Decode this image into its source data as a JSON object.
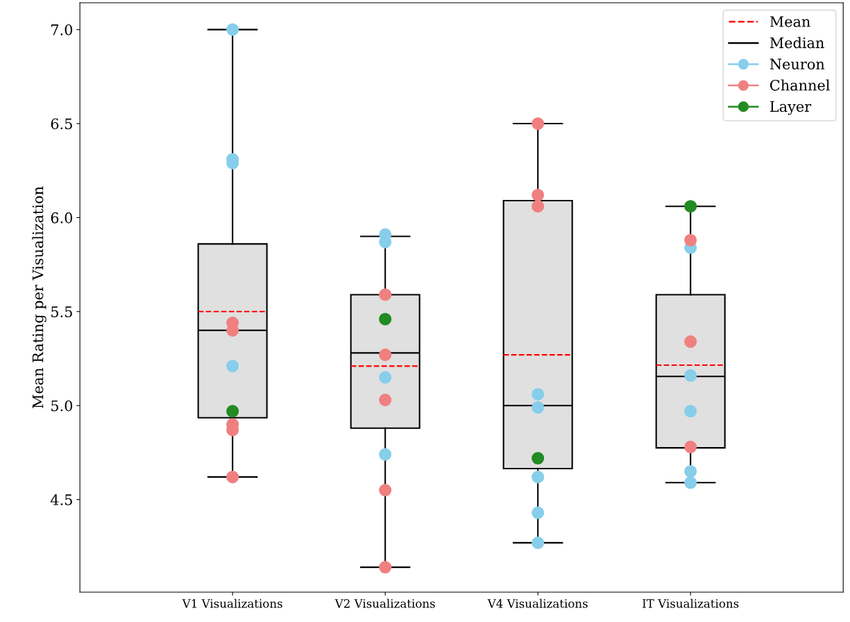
{
  "chart_data": {
    "type": "box",
    "categories": [
      "V1 Visualizations",
      "V2 Visualizations",
      "V4 Visualizations",
      "IT Visualizations"
    ],
    "ylabel": "Mean Rating per Visualization",
    "ylim": [
      4.0075,
      7.1425
    ],
    "yticks": [
      {
        "value": 4.5,
        "label": "4.5"
      },
      {
        "value": 5.0,
        "label": "5.0"
      },
      {
        "value": 5.5,
        "label": "5.5"
      },
      {
        "value": 6.0,
        "label": "6.0"
      },
      {
        "value": 6.5,
        "label": "6.5"
      },
      {
        "value": 7.0,
        "label": "7.0"
      }
    ],
    "annotations": [
      "Mean",
      "Median"
    ],
    "legend": "top right",
    "grid": false,
    "marker": "circle",
    "series": [
      {
        "type": "box",
        "color": "#e0e0e0",
        "boxes": [
          {
            "low": 4.62,
            "q1": 4.935,
            "median": 5.4,
            "q3": 5.86,
            "high": 7.0,
            "mean": 5.5
          },
          {
            "low": 4.14,
            "q1": 4.88,
            "median": 5.28,
            "q3": 5.59,
            "high": 5.9,
            "mean": 5.21
          },
          {
            "low": 4.27,
            "q1": 4.665,
            "median": 5.0,
            "q3": 6.09,
            "high": 6.5,
            "mean": 5.27
          },
          {
            "low": 4.59,
            "q1": 4.775,
            "median": 5.155,
            "q3": 5.59,
            "high": 6.06,
            "mean": 5.215
          }
        ]
      },
      {
        "type": "scatter",
        "name": "Neuron",
        "color": "#87ceeb",
        "x": [
          "V1 Visualizations",
          "V1 Visualizations",
          "V1 Visualizations",
          "V1 Visualizations",
          "V2 Visualizations",
          "V2 Visualizations",
          "V2 Visualizations",
          "V2 Visualizations",
          "V4 Visualizations",
          "V4 Visualizations",
          "V4 Visualizations",
          "V4 Visualizations",
          "V4 Visualizations",
          "IT Visualizations",
          "IT Visualizations",
          "IT Visualizations",
          "IT Visualizations",
          "IT Visualizations"
        ],
        "values": [
          7.0,
          6.31,
          6.29,
          5.21,
          5.91,
          5.87,
          5.15,
          4.74,
          5.06,
          4.99,
          4.62,
          4.43,
          4.27,
          5.84,
          5.16,
          4.97,
          4.65,
          4.59
        ]
      },
      {
        "type": "scatter",
        "name": "Channel",
        "color": "#f08080",
        "x": [
          "V1 Visualizations",
          "V1 Visualizations",
          "V1 Visualizations",
          "V1 Visualizations",
          "V1 Visualizations",
          "V2 Visualizations",
          "V2 Visualizations",
          "V2 Visualizations",
          "V2 Visualizations",
          "V2 Visualizations",
          "V4 Visualizations",
          "V4 Visualizations",
          "V4 Visualizations",
          "IT Visualizations",
          "IT Visualizations",
          "IT Visualizations"
        ],
        "values": [
          5.44,
          5.4,
          4.9,
          4.87,
          4.62,
          5.59,
          5.27,
          5.03,
          4.55,
          4.14,
          6.5,
          6.12,
          6.06,
          5.88,
          5.34,
          4.78
        ]
      },
      {
        "type": "scatter",
        "name": "Layer",
        "color": "#228b22",
        "x": [
          "V1 Visualizations",
          "V2 Visualizations",
          "V4 Visualizations",
          "IT Visualizations"
        ],
        "values": [
          4.97,
          5.46,
          4.72,
          6.06
        ]
      }
    ]
  }
}
